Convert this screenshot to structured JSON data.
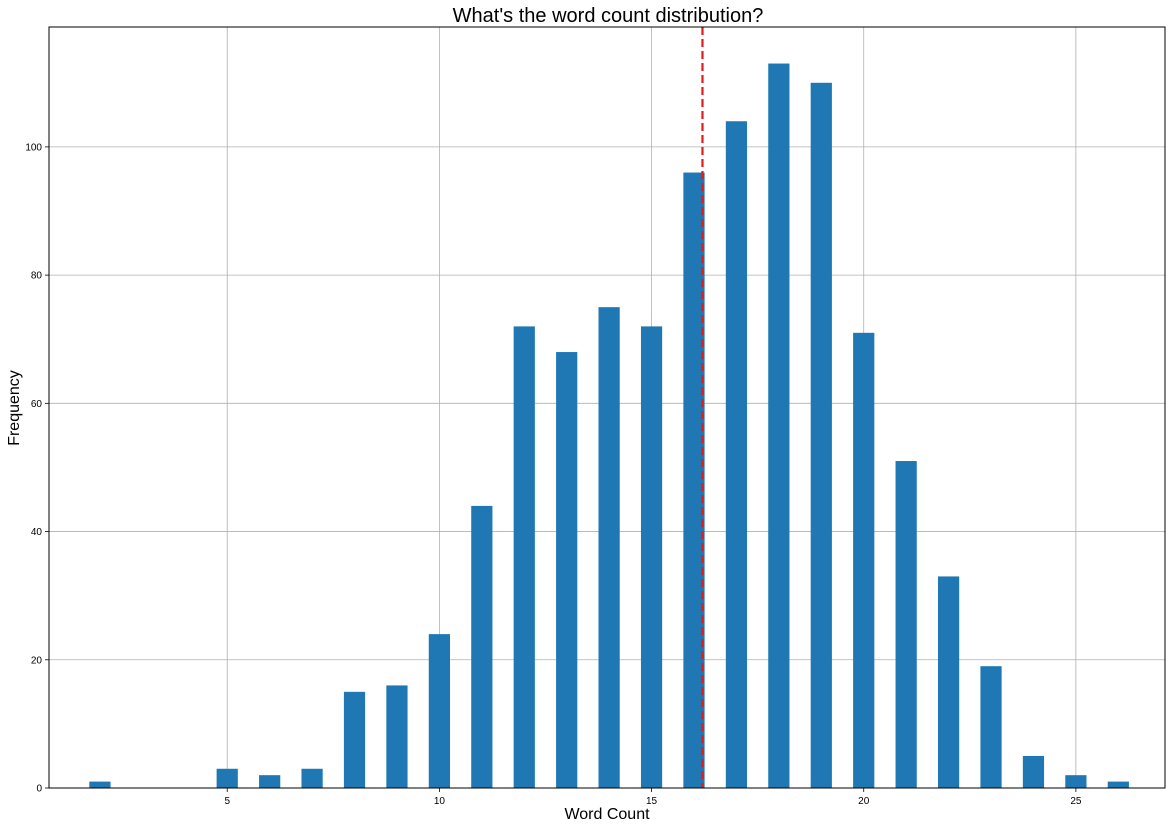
{
  "chart_data": {
    "type": "bar",
    "title": "What's the word count distribution?",
    "xlabel": "Word Count",
    "ylabel": "Frequency",
    "x": [
      2,
      5,
      6,
      7,
      8,
      9,
      10,
      11,
      12,
      13,
      14,
      15,
      16,
      17,
      18,
      19,
      20,
      21,
      22,
      23,
      24,
      25,
      26
    ],
    "values": [
      1,
      3,
      2,
      3,
      15,
      16,
      24,
      44,
      72,
      68,
      75,
      72,
      96,
      104,
      113,
      110,
      71,
      51,
      33,
      19,
      5,
      2,
      1
    ],
    "xlim": [
      0.8,
      27.1
    ],
    "ylim": [
      0,
      118.7
    ],
    "xticks": [
      5,
      10,
      15,
      20,
      25
    ],
    "yticks": [
      0,
      20,
      40,
      60,
      80,
      100
    ],
    "grid": true,
    "bar_color": "#1f77b4",
    "mean_line": {
      "x": 16.2,
      "color": "#e41a1c",
      "style": "dashed"
    }
  }
}
